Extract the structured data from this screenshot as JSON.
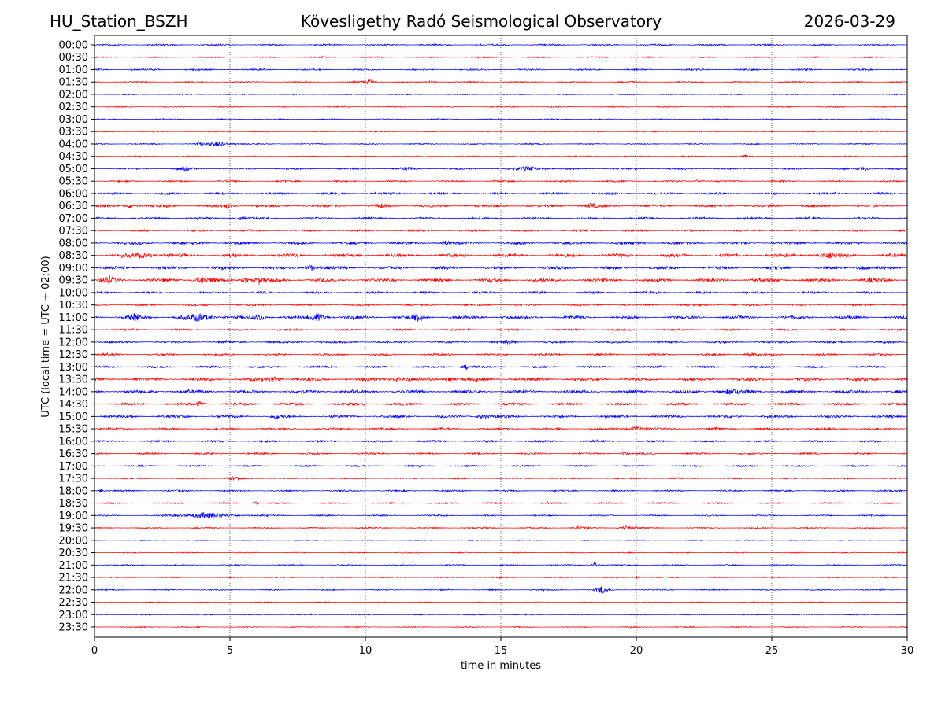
{
  "header": {
    "station": "HU_Station_BSZH",
    "observatory": "Kövesligethy Radó Seismological Observatory",
    "date": "2026-03-29"
  },
  "chart_data": {
    "type": "line",
    "title": "Kövesligethy Radó Seismological Observatory",
    "xlabel": "time in minutes",
    "ylabel": "UTC (local time = UTC + 02:00)",
    "xlim": [
      0,
      30
    ],
    "xticks": [
      0,
      5,
      10,
      15,
      20,
      25,
      30
    ],
    "grid": "vertical dotted at x ticks",
    "colors": [
      "#0000ff",
      "#ff0000"
    ],
    "row_labels": [
      "00:00",
      "00:30",
      "01:00",
      "01:30",
      "02:00",
      "02:30",
      "03:00",
      "03:30",
      "04:00",
      "04:30",
      "05:00",
      "05:30",
      "06:00",
      "06:30",
      "07:00",
      "07:30",
      "08:00",
      "08:30",
      "09:00",
      "09:30",
      "10:00",
      "10:30",
      "11:00",
      "11:30",
      "12:00",
      "12:30",
      "13:00",
      "13:30",
      "14:00",
      "14:30",
      "15:00",
      "15:30",
      "16:00",
      "16:30",
      "17:00",
      "17:30",
      "18:00",
      "18:30",
      "19:00",
      "19:30",
      "20:00",
      "20:30",
      "21:00",
      "21:30",
      "22:00",
      "22:30",
      "23:00",
      "23:30"
    ],
    "noise_level": [
      1.2,
      1,
      1.2,
      1,
      0.8,
      0.8,
      0.8,
      0.8,
      0.9,
      0.9,
      1.3,
      1.2,
      1.6,
      2,
      1.6,
      1.5,
      2,
      2.5,
      2.2,
      2.5,
      1.6,
      1.4,
      2.3,
      1.4,
      1.6,
      1.5,
      1.6,
      2.4,
      2.4,
      2,
      2,
      1.6,
      1.5,
      1.3,
      1.2,
      1.1,
      1.2,
      1.1,
      1,
      1,
      0.7,
      0.7,
      0.9,
      0.8,
      0.9,
      0.7,
      0.8,
      0.8
    ],
    "events_row_minute_amp_duration": [
      [
        3,
        10,
        3,
        0.5
      ],
      [
        3,
        12.3,
        2.5,
        0.3
      ],
      [
        8,
        4.2,
        3,
        1
      ],
      [
        9,
        24,
        3,
        0.1
      ],
      [
        10,
        3.2,
        2.5,
        0.4
      ],
      [
        10,
        11.5,
        2.5,
        0.3
      ],
      [
        10,
        15.8,
        3,
        0.8
      ],
      [
        10,
        28.3,
        3,
        0.4
      ],
      [
        11,
        22.2,
        2.5,
        0.3
      ],
      [
        13,
        1.2,
        3,
        0.4
      ],
      [
        13,
        4.8,
        3,
        0.4
      ],
      [
        13,
        10.5,
        2.5,
        0.3
      ],
      [
        13,
        18.2,
        3,
        0.4
      ],
      [
        14,
        5.3,
        2.5,
        0.4
      ],
      [
        16,
        12.8,
        2.5,
        0.5
      ],
      [
        17,
        1.5,
        3,
        1
      ],
      [
        17,
        26.8,
        3,
        1
      ],
      [
        18,
        7.8,
        3,
        0.6
      ],
      [
        18,
        28.2,
        3,
        0.5
      ],
      [
        19,
        0.4,
        5,
        0.4
      ],
      [
        19,
        3.8,
        5,
        0.5
      ],
      [
        19,
        6,
        6,
        0.2
      ],
      [
        19,
        5.5,
        4,
        0.3
      ],
      [
        19,
        28.5,
        3,
        0.3
      ],
      [
        22,
        1.3,
        4,
        0.6
      ],
      [
        22,
        3.5,
        4,
        1.2
      ],
      [
        22,
        6,
        4,
        0.4
      ],
      [
        22,
        8.1,
        5,
        0.5
      ],
      [
        22,
        11.8,
        3.5,
        0.4
      ],
      [
        24,
        15.2,
        3,
        0.4
      ],
      [
        25,
        24.1,
        4,
        0.3
      ],
      [
        26,
        13.6,
        3,
        0.4
      ],
      [
        27,
        6.5,
        4,
        0.4
      ],
      [
        27,
        11,
        3,
        0.5
      ],
      [
        27,
        13,
        3,
        0.4
      ],
      [
        28,
        23.2,
        3,
        0.8
      ],
      [
        29,
        3.8,
        3,
        0.3
      ],
      [
        30,
        14.2,
        3.5,
        0.4
      ],
      [
        30,
        6.6,
        3,
        0.3
      ],
      [
        31,
        19.8,
        3,
        0.7
      ],
      [
        33,
        19.5,
        2.5,
        0.2
      ],
      [
        35,
        5,
        3,
        0.3
      ],
      [
        36,
        0.2,
        2,
        0.2
      ],
      [
        37,
        5.9,
        3,
        0.2
      ],
      [
        38,
        3.5,
        3.5,
        2
      ],
      [
        39,
        19.5,
        3,
        0.5
      ],
      [
        39,
        17.7,
        2.5,
        0.4
      ],
      [
        42,
        18.4,
        4.5,
        0.2
      ],
      [
        44,
        18.6,
        5,
        0.4
      ],
      [
        43,
        20,
        2,
        0.1
      ]
    ]
  }
}
